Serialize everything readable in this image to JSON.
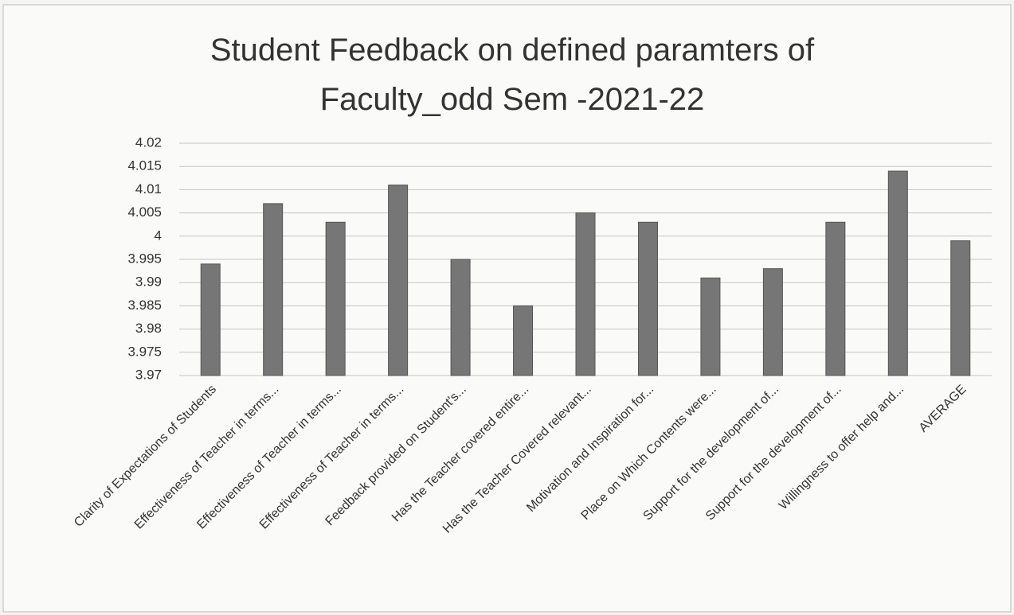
{
  "chart_data": {
    "type": "bar",
    "title_lines": [
      "Student Feedback on defined paramters of",
      "Faculty_odd Sem -2021-22"
    ],
    "categories": [
      "Clarity of Expectations of Students",
      "Effectiveness of Teacher in terms...",
      "Effectiveness of Teacher in terms...",
      "Effectiveness of Teacher in terms...",
      "Feedback provided on Student's...",
      "Has the Teacher covered entire...",
      "Has the Teacher Covered relevant...",
      "Motivation and Inspiration for...",
      "Place on Which Contents were...",
      "Support for the development of...",
      "Support for the development of...",
      "Willingness to offer help and...",
      "AVERAGE"
    ],
    "values": [
      3.994,
      4.007,
      4.003,
      4.011,
      3.995,
      3.985,
      4.005,
      4.003,
      3.991,
      3.993,
      4.003,
      4.014,
      3.999
    ],
    "color": "#767676",
    "ylim": [
      3.97,
      4.02
    ],
    "yticks": [
      3.97,
      3.975,
      3.98,
      3.985,
      3.99,
      3.995,
      4,
      4.005,
      4.01,
      4.015,
      4.02
    ],
    "grid": true
  }
}
